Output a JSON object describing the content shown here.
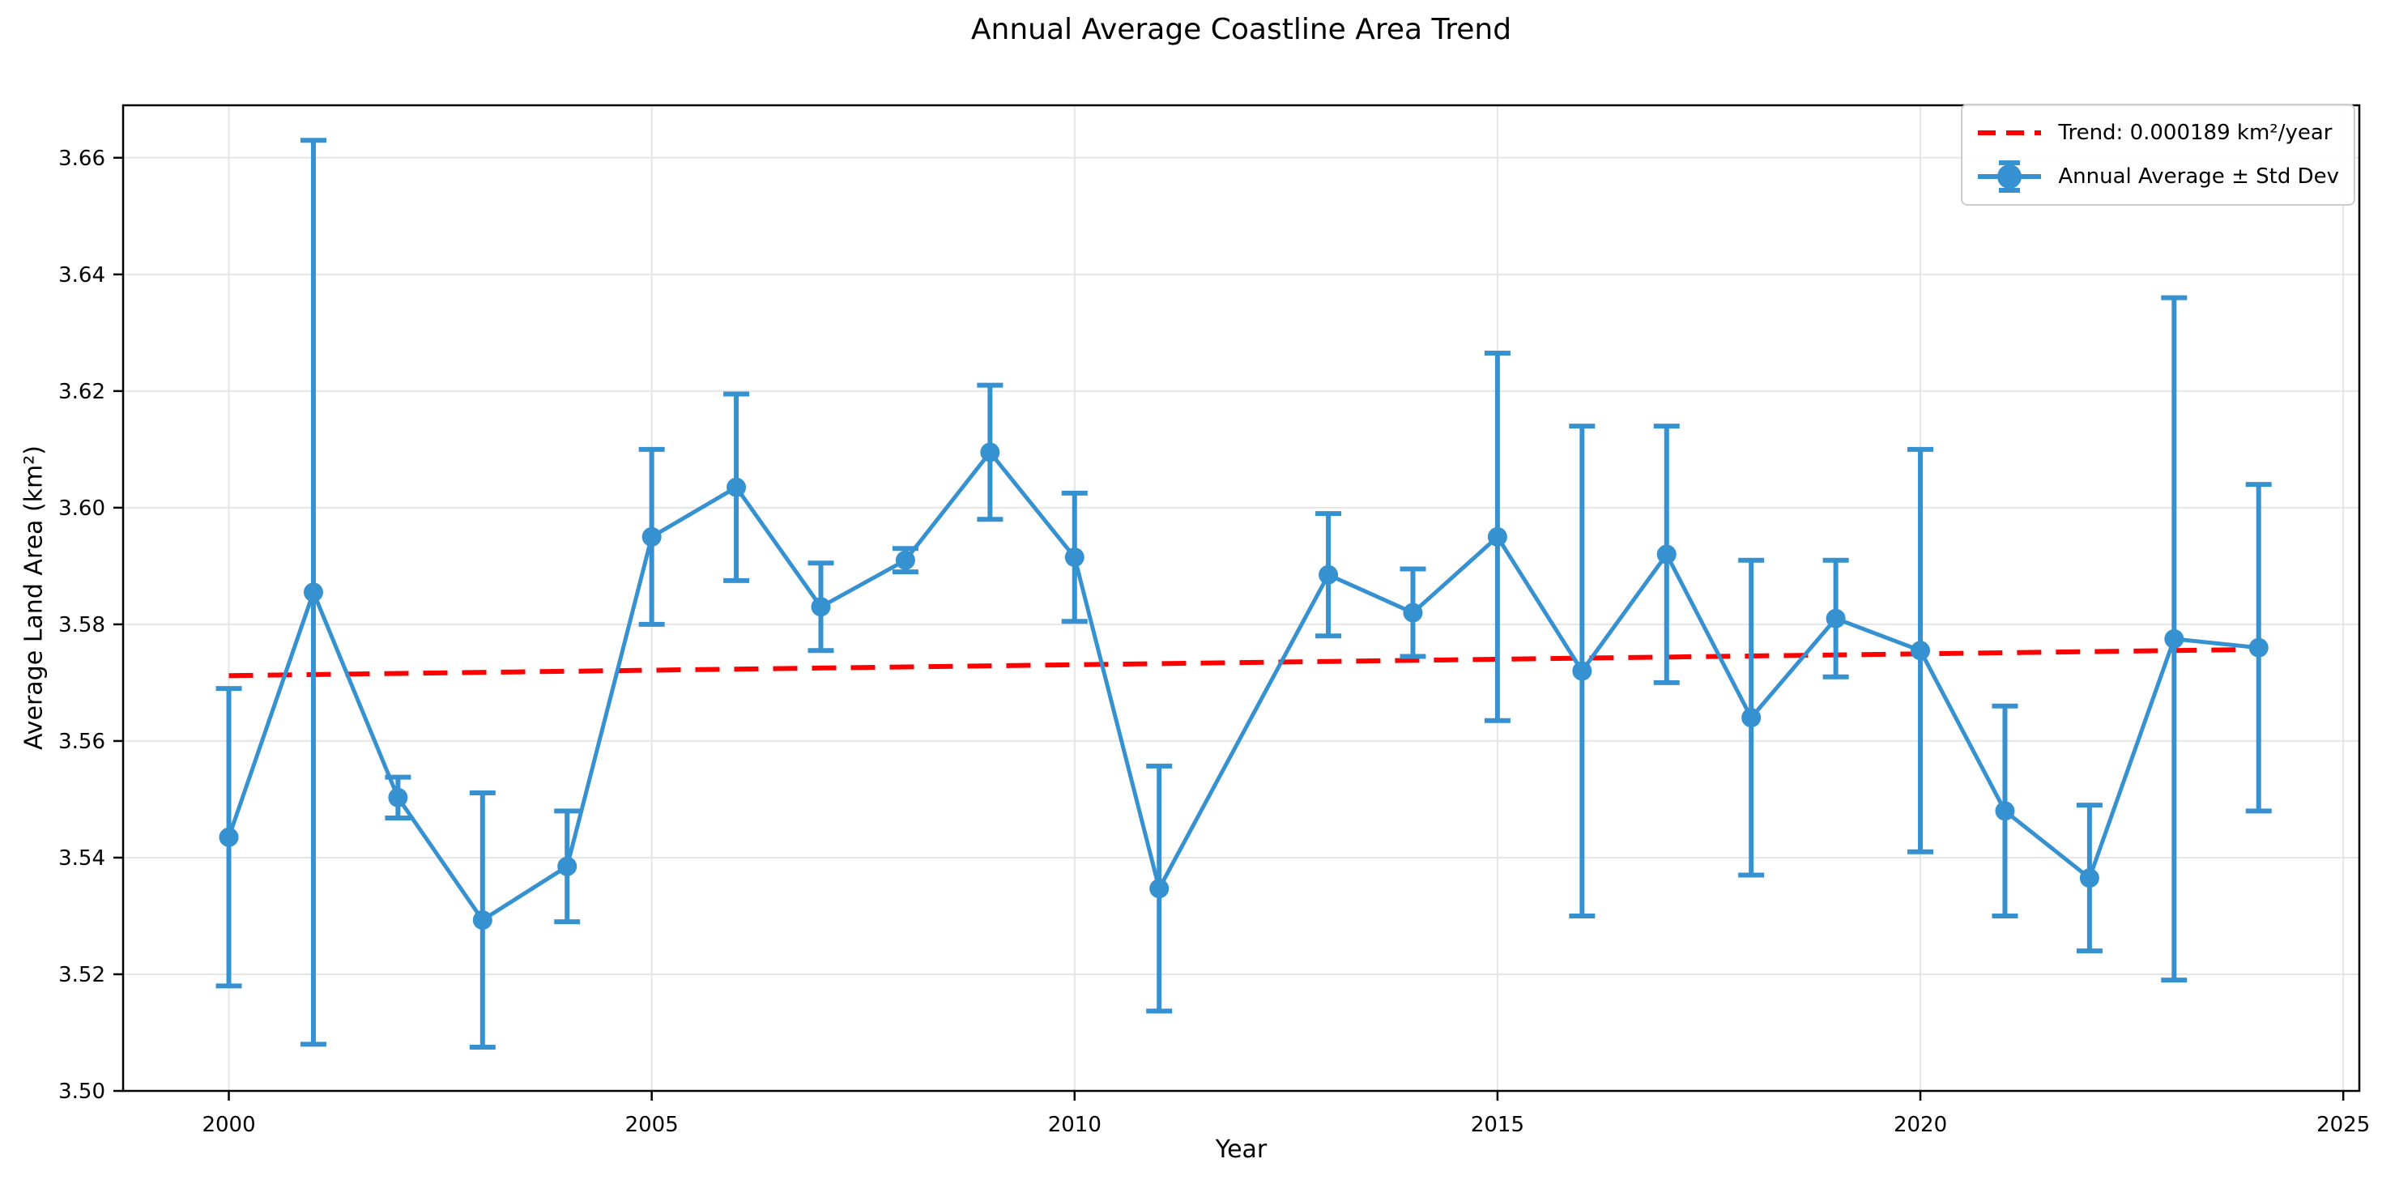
{
  "title": "Annual Average Coastline Area Trend",
  "axes": {
    "xlabel": "Year",
    "ylabel": "Average Land Area (km²)"
  },
  "legend": {
    "items": [
      {
        "label": "Trend: 0.000189 km²/year",
        "color": "#ff0000",
        "style": "dashed-line"
      },
      {
        "label": "Annual Average ± Std Dev",
        "color": "#3691d1",
        "style": "errorbar-marker"
      }
    ]
  },
  "chart_data": {
    "type": "line",
    "title": "Annual Average Coastline Area Trend",
    "xlabel": "Year",
    "ylabel": "Average Land Area (km²)",
    "xlim": [
      1998.75,
      2025.19
    ],
    "ylim": [
      3.5,
      3.669
    ],
    "grid": true,
    "legend_position": "upper right",
    "x_ticks": [
      2000,
      2005,
      2010,
      2015,
      2020,
      2025
    ],
    "x_tick_labels": [
      "2000",
      "2005",
      "2010",
      "2015",
      "2020",
      "2025"
    ],
    "y_ticks": [
      3.5,
      3.52,
      3.54,
      3.56,
      3.58,
      3.6,
      3.62,
      3.64,
      3.66
    ],
    "y_tick_labels": [
      "3.50",
      "3.52",
      "3.54",
      "3.56",
      "3.58",
      "3.60",
      "3.62",
      "3.64",
      "3.66"
    ],
    "series": [
      {
        "name": "Trend: 0.000189 km²/year",
        "type": "dashed_line",
        "color": "#ff0000",
        "slope_km2_per_year": 0.000189,
        "x": [
          2000,
          2024
        ],
        "y": [
          3.5712,
          3.5757
        ]
      },
      {
        "name": "Annual Average ± Std Dev",
        "type": "errorbar_line",
        "color": "#3691d1",
        "x": [
          2000,
          2001,
          2002,
          2003,
          2004,
          2005,
          2006,
          2007,
          2008,
          2009,
          2010,
          2011,
          2013,
          2014,
          2015,
          2016,
          2017,
          2018,
          2019,
          2020,
          2021,
          2022,
          2023,
          2024
        ],
        "y": [
          3.5435,
          3.5855,
          3.5503,
          3.5293,
          3.5385,
          3.595,
          3.6035,
          3.583,
          3.591,
          3.6095,
          3.5915,
          3.5347,
          3.5885,
          3.582,
          3.595,
          3.572,
          3.592,
          3.564,
          3.581,
          3.5755,
          3.548,
          3.5365,
          3.5775,
          3.576
        ],
        "yerr": [
          0.0255,
          0.0775,
          0.0035,
          0.0218,
          0.0095,
          0.015,
          0.016,
          0.0075,
          0.002,
          0.0115,
          0.011,
          0.021,
          0.0105,
          0.0075,
          0.0315,
          0.042,
          0.022,
          0.027,
          0.01,
          0.0345,
          0.018,
          0.0125,
          0.0585,
          0.028
        ]
      }
    ]
  }
}
